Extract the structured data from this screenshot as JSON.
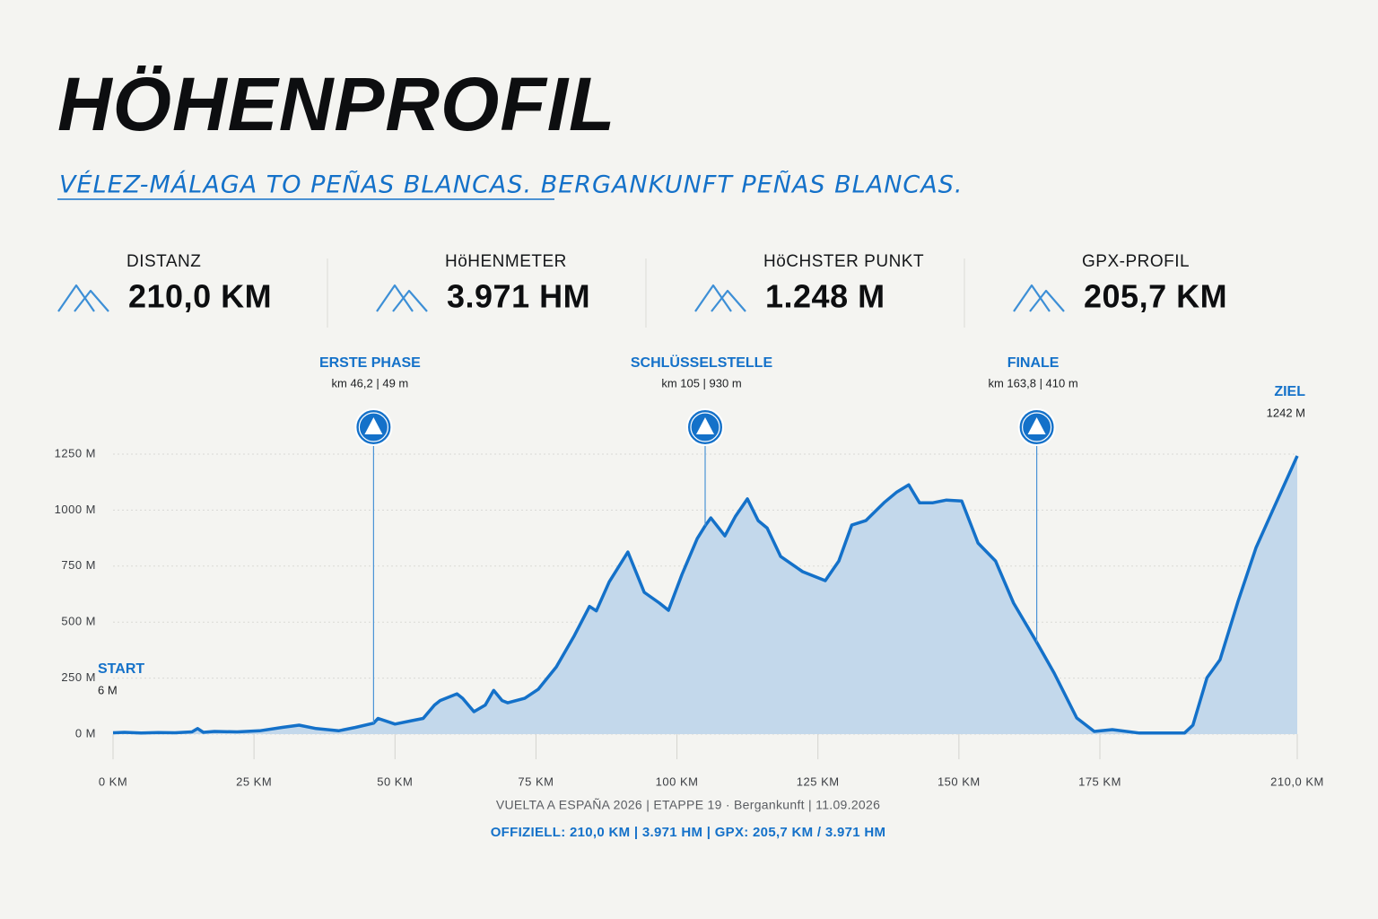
{
  "chart_data": {
    "type": "area",
    "title": "HÖHENPROFIL",
    "subtitle": "VÉLEZ-MÁLAGA TO PEÑAS BLANCAS. BERGANKUNFT PEÑAS BLANCAS.",
    "stats": [
      {
        "label": "DISTANZ",
        "value": "210,0 KM"
      },
      {
        "label": "HöHENMETER",
        "value": "3.971 HM"
      },
      {
        "label": "HöCHSTER PUNKT",
        "value": "1.248 M"
      },
      {
        "label": "GPX-PROFIL",
        "value": "205,7 KM"
      }
    ],
    "x": [
      0,
      2,
      5,
      8,
      11,
      14,
      15,
      16,
      18,
      22,
      26,
      30,
      33,
      36,
      40,
      43,
      46.2,
      47,
      50,
      53,
      55,
      57,
      58,
      61,
      62,
      64,
      66,
      67.5,
      69,
      70,
      73,
      75.4,
      78.6,
      81.8,
      84.5,
      85.7,
      88,
      91.3,
      94.2,
      96.9,
      98.5,
      100.9,
      103.6,
      105,
      106,
      108.5,
      110.4,
      112.5,
      114.4,
      116,
      118.4,
      122.3,
      126.3,
      128.7,
      131,
      133.5,
      136.7,
      139,
      141.1,
      143,
      145.4,
      147.8,
      150.5,
      153.4,
      156.5,
      159.7,
      163.8,
      166.9,
      170.9,
      174,
      177.2,
      182,
      186.8,
      190,
      191.5,
      194,
      196.3,
      199.5,
      202.7,
      205.9,
      210
    ],
    "values": [
      6,
      8,
      5,
      7,
      6,
      10,
      25,
      8,
      12,
      10,
      15,
      30,
      40,
      25,
      15,
      30,
      49,
      70,
      45,
      60,
      70,
      130,
      150,
      180,
      160,
      100,
      130,
      195,
      150,
      140,
      160,
      200,
      300,
      440,
      570,
      550,
      680,
      813,
      633,
      585,
      553,
      713,
      873,
      930,
      965,
      885,
      973,
      1050,
      953,
      920,
      793,
      725,
      685,
      773,
      933,
      953,
      1033,
      1081,
      1113,
      1033,
      1033,
      1045,
      1041,
      853,
      773,
      585,
      410,
      272,
      72,
      12,
      20,
      5,
      5,
      5,
      40,
      252,
      332,
      593,
      833,
      1013,
      1242
    ],
    "color": "#1471c9",
    "fill": "#c3d8eb",
    "xlim": [
      0,
      210
    ],
    "ylim": [
      0,
      1250
    ],
    "xticks": [
      {
        "value": 0,
        "label": "0 KM"
      },
      {
        "value": 25,
        "label": "25 KM"
      },
      {
        "value": 50,
        "label": "50 KM"
      },
      {
        "value": 75,
        "label": "75 KM"
      },
      {
        "value": 100,
        "label": "100 KM"
      },
      {
        "value": 125,
        "label": "125 KM"
      },
      {
        "value": 150,
        "label": "150 KM"
      },
      {
        "value": 175,
        "label": "175 KM"
      },
      {
        "value": 210,
        "label": "210,0 KM"
      }
    ],
    "yticks": [
      {
        "value": 0,
        "label": "0 M"
      },
      {
        "value": 250,
        "label": "250 M"
      },
      {
        "value": 500,
        "label": "500 M"
      },
      {
        "value": 750,
        "label": "750 M"
      },
      {
        "value": 1000,
        "label": "1000 M"
      },
      {
        "value": 1250,
        "label": "1250 M"
      }
    ],
    "grid": true,
    "annotations": [
      {
        "label": "START",
        "text": "6 M",
        "x": 0,
        "y": 6
      },
      {
        "label": "ERSTE PHASE",
        "text": "km 46,2 | 49 m",
        "x": 46.2,
        "y": 49
      },
      {
        "label": "SCHLÜSSELSTELLE",
        "text": "km 105 | 930 m",
        "x": 105,
        "y": 930
      },
      {
        "label": "FINALE",
        "text": "km 163,8 | 410 m",
        "x": 163.8,
        "y": 410
      },
      {
        "label": "ZIEL",
        "text": "1242 M",
        "x": 210,
        "y": 1242
      }
    ],
    "footer": [
      "VUELTA A ESPAÑA 2026 | ETAPPE 19 · Bergankunft | 11.09.2026",
      "OFFIZIELL: 210,0 KM | 3.971 HM | GPX: 205,7 KM / 3.971 HM"
    ]
  }
}
